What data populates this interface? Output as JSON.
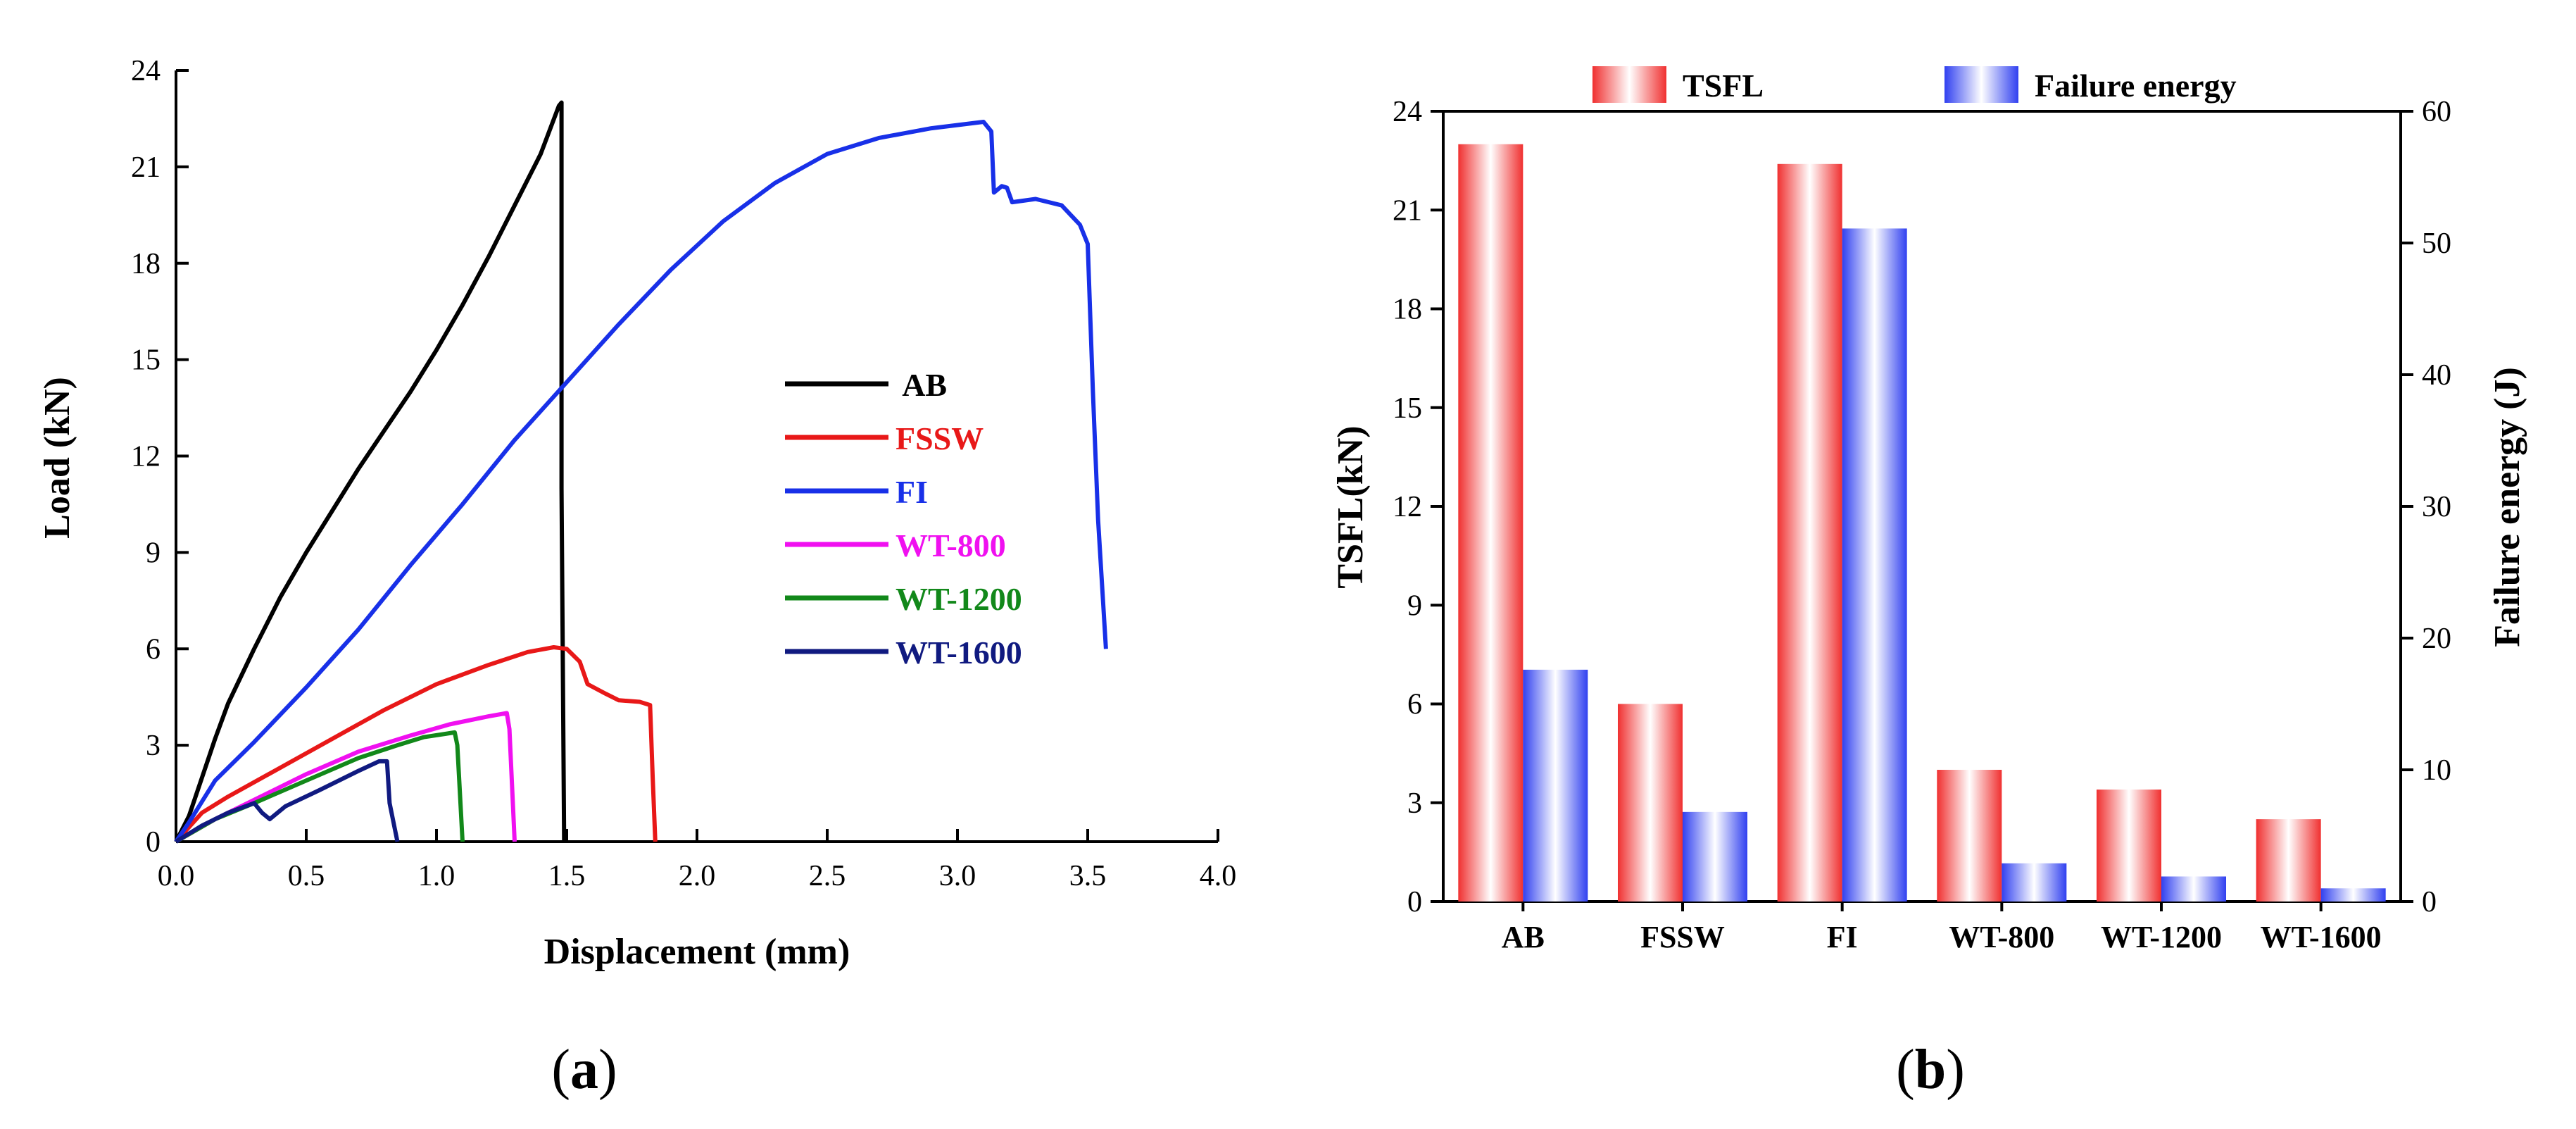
{
  "chart_data": [
    {
      "type": "line",
      "panel_label": "(a)",
      "xlabel": "Displacement (mm)",
      "ylabel": "Load (kN)",
      "xlim": [
        0,
        4.0
      ],
      "ylim": [
        0,
        24
      ],
      "xticks": [
        "0.0",
        "0.5",
        "1.0",
        "1.5",
        "2.0",
        "2.5",
        "3.0",
        "3.5",
        "4.0"
      ],
      "yticks": [
        "0",
        "3",
        "6",
        "9",
        "12",
        "15",
        "18",
        "21",
        "24"
      ],
      "legend_position": "center-right",
      "series": [
        {
          "name": "AB",
          "color": "#000000",
          "points": [
            [
              0,
              0
            ],
            [
              0.05,
              0.8
            ],
            [
              0.1,
              2.0
            ],
            [
              0.15,
              3.2
            ],
            [
              0.2,
              4.3
            ],
            [
              0.3,
              6.0
            ],
            [
              0.4,
              7.6
            ],
            [
              0.5,
              9.0
            ],
            [
              0.6,
              10.3
            ],
            [
              0.7,
              11.6
            ],
            [
              0.8,
              12.8
            ],
            [
              0.9,
              14.0
            ],
            [
              1.0,
              15.3
            ],
            [
              1.1,
              16.7
            ],
            [
              1.2,
              18.2
            ],
            [
              1.3,
              19.8
            ],
            [
              1.4,
              21.4
            ],
            [
              1.47,
              22.9
            ],
            [
              1.48,
              23.0
            ],
            [
              1.48,
              11.0
            ],
            [
              1.49,
              0
            ]
          ]
        },
        {
          "name": "FSSW",
          "color": "#e81818",
          "points": [
            [
              0,
              0
            ],
            [
              0.1,
              0.9
            ],
            [
              0.2,
              1.4
            ],
            [
              0.4,
              2.3
            ],
            [
              0.6,
              3.2
            ],
            [
              0.8,
              4.1
            ],
            [
              1.0,
              4.9
            ],
            [
              1.2,
              5.5
            ],
            [
              1.35,
              5.9
            ],
            [
              1.45,
              6.05
            ],
            [
              1.5,
              6.0
            ],
            [
              1.55,
              5.6
            ],
            [
              1.58,
              4.9
            ],
            [
              1.65,
              4.6
            ],
            [
              1.7,
              4.4
            ],
            [
              1.78,
              4.35
            ],
            [
              1.82,
              4.25
            ],
            [
              1.83,
              2.0
            ],
            [
              1.84,
              0
            ]
          ]
        },
        {
          "name": "FI",
          "color": "#1830e8",
          "points": [
            [
              0,
              0
            ],
            [
              0.05,
              0.6
            ],
            [
              0.15,
              1.9
            ],
            [
              0.3,
              3.1
            ],
            [
              0.5,
              4.8
            ],
            [
              0.7,
              6.6
            ],
            [
              0.9,
              8.6
            ],
            [
              1.1,
              10.5
            ],
            [
              1.3,
              12.5
            ],
            [
              1.5,
              14.3
            ],
            [
              1.7,
              16.1
            ],
            [
              1.9,
              17.8
            ],
            [
              2.1,
              19.3
            ],
            [
              2.3,
              20.5
            ],
            [
              2.5,
              21.4
            ],
            [
              2.7,
              21.9
            ],
            [
              2.9,
              22.2
            ],
            [
              3.1,
              22.4
            ],
            [
              3.13,
              22.1
            ],
            [
              3.14,
              20.2
            ],
            [
              3.17,
              20.4
            ],
            [
              3.19,
              20.35
            ],
            [
              3.21,
              19.9
            ],
            [
              3.3,
              20.0
            ],
            [
              3.4,
              19.8
            ],
            [
              3.47,
              19.2
            ],
            [
              3.5,
              18.6
            ],
            [
              3.52,
              14.0
            ],
            [
              3.54,
              10.0
            ],
            [
              3.57,
              6.0
            ]
          ]
        },
        {
          "name": "WT-800",
          "color": "#f010f0",
          "points": [
            [
              0,
              0
            ],
            [
              0.15,
              0.7
            ],
            [
              0.3,
              1.3
            ],
            [
              0.5,
              2.1
            ],
            [
              0.7,
              2.8
            ],
            [
              0.9,
              3.3
            ],
            [
              1.05,
              3.65
            ],
            [
              1.2,
              3.9
            ],
            [
              1.27,
              4.0
            ],
            [
              1.28,
              3.5
            ],
            [
              1.3,
              0
            ]
          ]
        },
        {
          "name": "WT-1200",
          "color": "#12881a",
          "points": [
            [
              0,
              0
            ],
            [
              0.15,
              0.7
            ],
            [
              0.3,
              1.2
            ],
            [
              0.5,
              1.9
            ],
            [
              0.7,
              2.6
            ],
            [
              0.85,
              3.0
            ],
            [
              0.95,
              3.25
            ],
            [
              1.07,
              3.4
            ],
            [
              1.08,
              3.0
            ],
            [
              1.1,
              0
            ]
          ]
        },
        {
          "name": "WT-1600",
          "color": "#101a80",
          "points": [
            [
              0,
              0
            ],
            [
              0.1,
              0.5
            ],
            [
              0.2,
              0.9
            ],
            [
              0.3,
              1.2
            ],
            [
              0.33,
              0.9
            ],
            [
              0.36,
              0.7
            ],
            [
              0.42,
              1.1
            ],
            [
              0.55,
              1.6
            ],
            [
              0.7,
              2.2
            ],
            [
              0.78,
              2.5
            ],
            [
              0.81,
              2.5
            ],
            [
              0.82,
              1.2
            ],
            [
              0.84,
              0.4
            ],
            [
              0.85,
              0
            ]
          ]
        }
      ]
    },
    {
      "type": "bar",
      "panel_label": "(b)",
      "ylabel": "TSFL(kN)",
      "y2label": "Failure energy (J)",
      "ylim": [
        0,
        24
      ],
      "y2lim": [
        0,
        60
      ],
      "yticks": [
        "0",
        "3",
        "6",
        "9",
        "12",
        "15",
        "18",
        "21",
        "24"
      ],
      "y2ticks": [
        "0",
        "10",
        "20",
        "30",
        "40",
        "50",
        "60"
      ],
      "categories": [
        "AB",
        "FSSW",
        "FI",
        "WT-800",
        "WT-1200",
        "WT-1600"
      ],
      "legend_position": "top",
      "series": [
        {
          "name": "TSFL",
          "axis": "left",
          "color": "#f03030",
          "values": [
            23.0,
            6.0,
            22.4,
            4.0,
            3.4,
            2.5
          ]
        },
        {
          "name": "Failure energy",
          "axis": "right",
          "color": "#3040f0",
          "values": [
            17.6,
            6.8,
            51.1,
            2.9,
            1.9,
            1.0
          ]
        }
      ]
    }
  ]
}
